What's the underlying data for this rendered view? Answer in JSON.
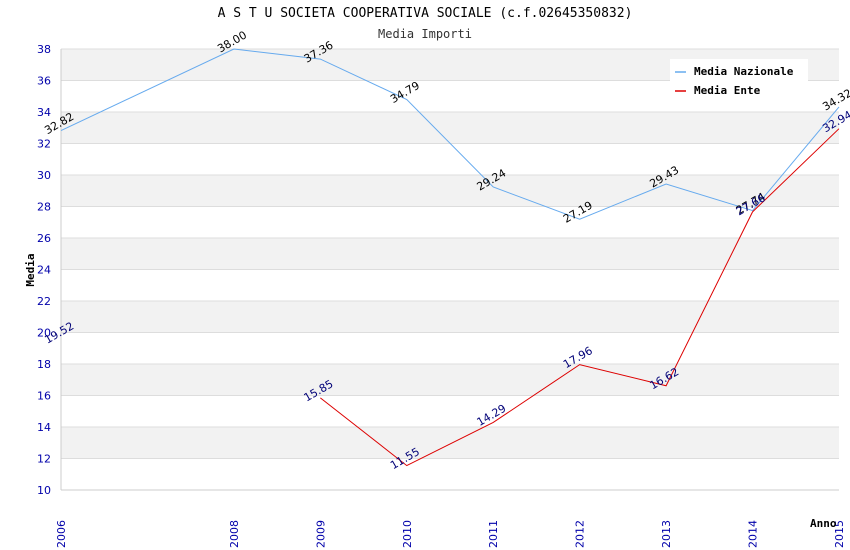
{
  "chart_data": {
    "type": "line",
    "title": "A S T U SOCIETA COOPERATIVA SOCIALE (c.f.02645350832)",
    "subtitle": "Media Importi",
    "xlabel": "Anno",
    "ylabel": "Media",
    "x": [
      2006,
      2008,
      2009,
      2010,
      2011,
      2012,
      2013,
      2014,
      2015
    ],
    "ylim": [
      10,
      38
    ],
    "yticks": [
      10,
      12,
      14,
      16,
      18,
      20,
      22,
      24,
      26,
      28,
      30,
      32,
      34,
      36,
      38
    ],
    "grid": true,
    "legend_position": "top-right",
    "series": [
      {
        "name": "Media Nazionale",
        "color": "#66aaee",
        "label_color": "#000000",
        "values": [
          32.82,
          38.0,
          37.36,
          34.79,
          29.24,
          27.19,
          29.43,
          27.74,
          34.32
        ]
      },
      {
        "name": "Media Ente",
        "color": "#dd0000",
        "label_color": "#000077",
        "values": [
          19.52,
          null,
          15.85,
          11.55,
          14.29,
          17.96,
          16.62,
          27.66,
          32.94
        ]
      }
    ]
  }
}
